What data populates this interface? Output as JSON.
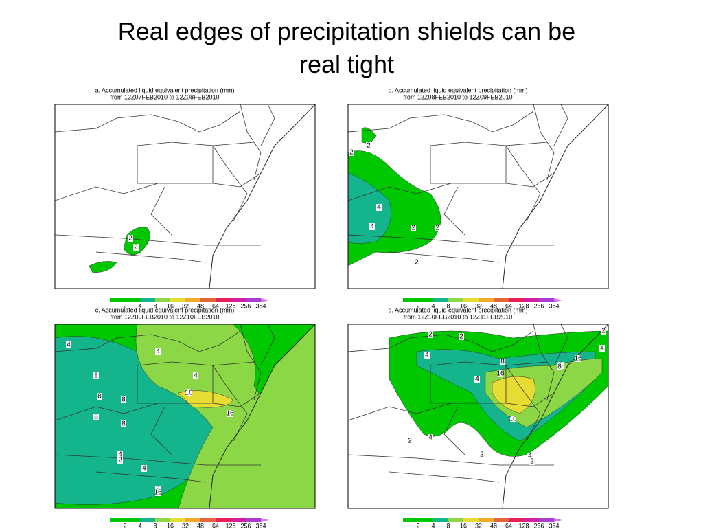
{
  "title": "Real edges of precipitation shields can be real tight",
  "panels": [
    {
      "title": "a. Accumulated liquid equivalent precipitation (mm)",
      "subtitle": "from 12Z07FEB2010 to 12Z08FEB2010",
      "contour_labels": [
        "2",
        "2"
      ]
    },
    {
      "title": "b. Accumulated liquid equivalent precipitation (mm)",
      "subtitle": "from 12Z08FEB2010 to 12Z09FEB2010",
      "contour_labels": [
        "2",
        "2",
        "4",
        "4",
        "2",
        "2",
        "2"
      ]
    },
    {
      "title": "c. Accumulated liquid equivalent precipitation (mm)",
      "subtitle": "from 12Z09FEB2010 to 12Z10FEB2010",
      "contour_labels": [
        "4",
        "8",
        "4",
        "8",
        "8",
        "8",
        "4",
        "16",
        "16",
        "8",
        "4",
        "2",
        "4",
        "8",
        "16"
      ]
    },
    {
      "title": "d. Accumulated liquid equivalent precipitation (mm)",
      "subtitle": "from 12Z10FEB2010 to 12Z11FEB2010",
      "contour_labels": [
        "2",
        "2",
        "4",
        "8",
        "16",
        "4",
        "8",
        "16",
        "4",
        "2",
        "16",
        "8",
        "2",
        "4",
        "2",
        "2",
        "4"
      ]
    }
  ],
  "colorbar": {
    "labels": [
      2,
      4,
      8,
      16,
      32,
      48,
      64,
      128,
      256,
      384
    ],
    "colors": [
      "#00c800",
      "#00c800",
      "#14b48c",
      "#8cd746",
      "#e6dc32",
      "#f0aa28",
      "#e6643c",
      "#e61e5a",
      "#d21ea0",
      "#aa3cd2",
      "#c878f0"
    ]
  }
}
